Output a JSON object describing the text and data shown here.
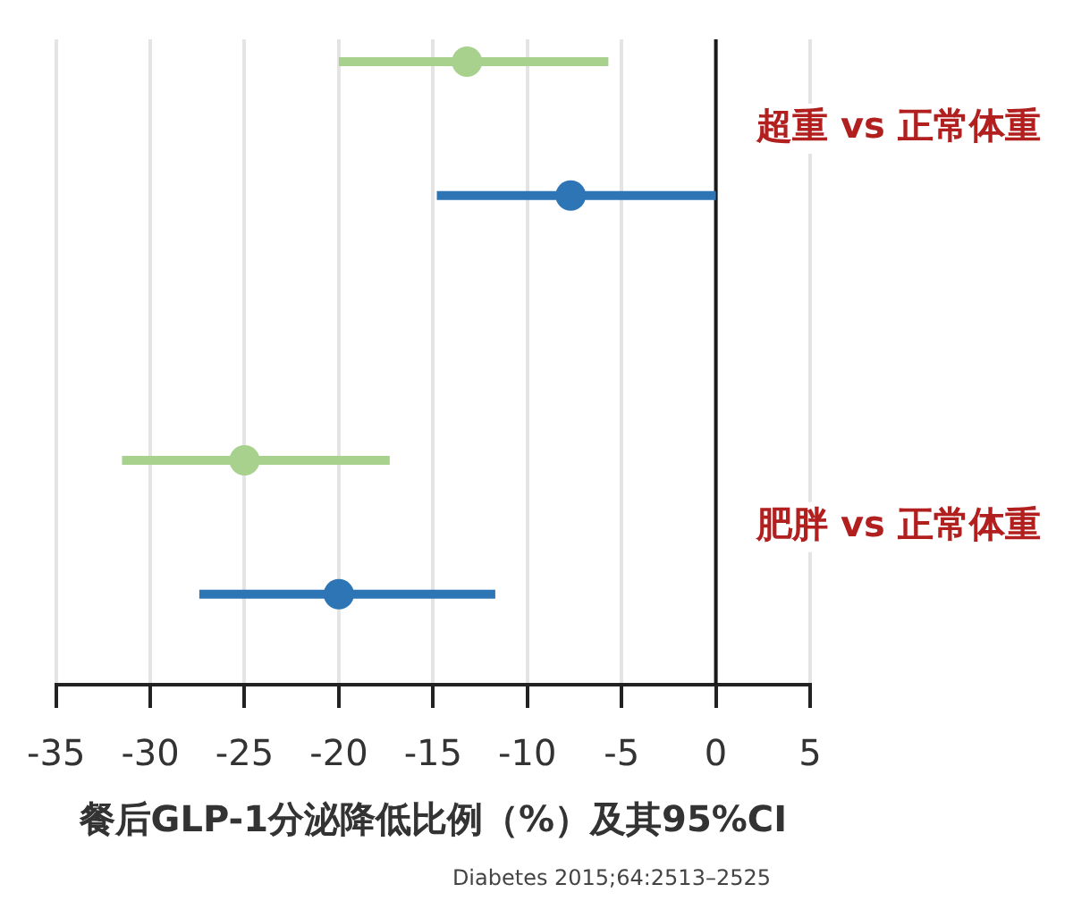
{
  "chart_data": {
    "type": "scatter",
    "orientation": "horizontal",
    "categories": [
      "超重 vs 正常体重",
      "肥胖 vs 正常体重"
    ],
    "series": [
      {
        "color": "#a9d18e",
        "values": [
          -13.2,
          -25
        ],
        "errors": [
          [
            -20,
            -5.7
          ],
          [
            -31.5,
            -17.3
          ]
        ]
      },
      {
        "color": "#2e75b6",
        "values": [
          -7.7,
          -20
        ],
        "errors": [
          [
            -14.8,
            0
          ],
          [
            -27.4,
            -11.7
          ]
        ]
      }
    ],
    "xlabel": "餐后GLP-1分泌降低比例（%）及其95%CI",
    "xlim": [
      -35,
      5
    ],
    "xticks": [
      -35,
      -30,
      -25,
      -20,
      -15,
      -10,
      -5,
      0,
      5
    ],
    "grid": "x",
    "ref_lines": [
      {
        "axis": "x",
        "value": 0,
        "color": "#1a1a1a"
      }
    ],
    "marker": "circle",
    "legend": false,
    "annotations": [
      "Diabetes 2015;64:2513–2525"
    ]
  }
}
